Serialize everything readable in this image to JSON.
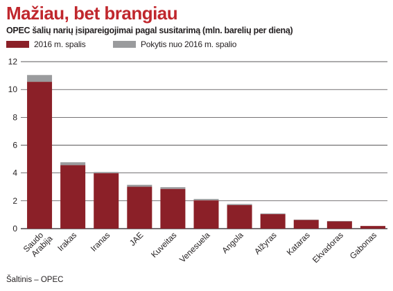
{
  "header": {
    "title": "Mažiau, bet brangiau",
    "subtitle": "OPEC šalių narių įsipareigojimai pagal susitarimą (mln. barelių per dieną)"
  },
  "source": "Šaltinis – OPEC",
  "colors": {
    "base": "#8b2028",
    "change": "#9a9b9d",
    "title": "#c0272d",
    "grid": "#231f20"
  },
  "chart_data": {
    "type": "bar",
    "stacked": true,
    "title": "Mažiau, bet brangiau",
    "subtitle": "OPEC šalių narių įsipareigojimai pagal susitarimą (mln. barelių per dieną)",
    "xlabel": "",
    "ylabel": "",
    "ylim": [
      0,
      12
    ],
    "yticks": [
      0,
      2,
      4,
      6,
      8,
      10,
      12
    ],
    "grid": true,
    "legend_position": "top-left",
    "categories": [
      "Saudo Arabija",
      "Irakas",
      "Iranas",
      "JAE",
      "Kuveitas",
      "Venesuela",
      "Angola",
      "Alžyras",
      "Kataras",
      "Ekvadoras",
      "Gabonas"
    ],
    "series": [
      {
        "name": "2016 m. spalis",
        "color": "#8b2028",
        "values": [
          10.55,
          4.56,
          3.98,
          3.01,
          2.85,
          2.03,
          1.69,
          1.04,
          0.62,
          0.52,
          0.19
        ]
      },
      {
        "name": "Pokytis nuo 2016 m. spalio",
        "color": "#9a9b9d",
        "values": [
          0.49,
          0.21,
          0.09,
          0.14,
          0.13,
          0.1,
          0.08,
          0.05,
          0.03,
          0.03,
          0.01
        ]
      }
    ]
  }
}
